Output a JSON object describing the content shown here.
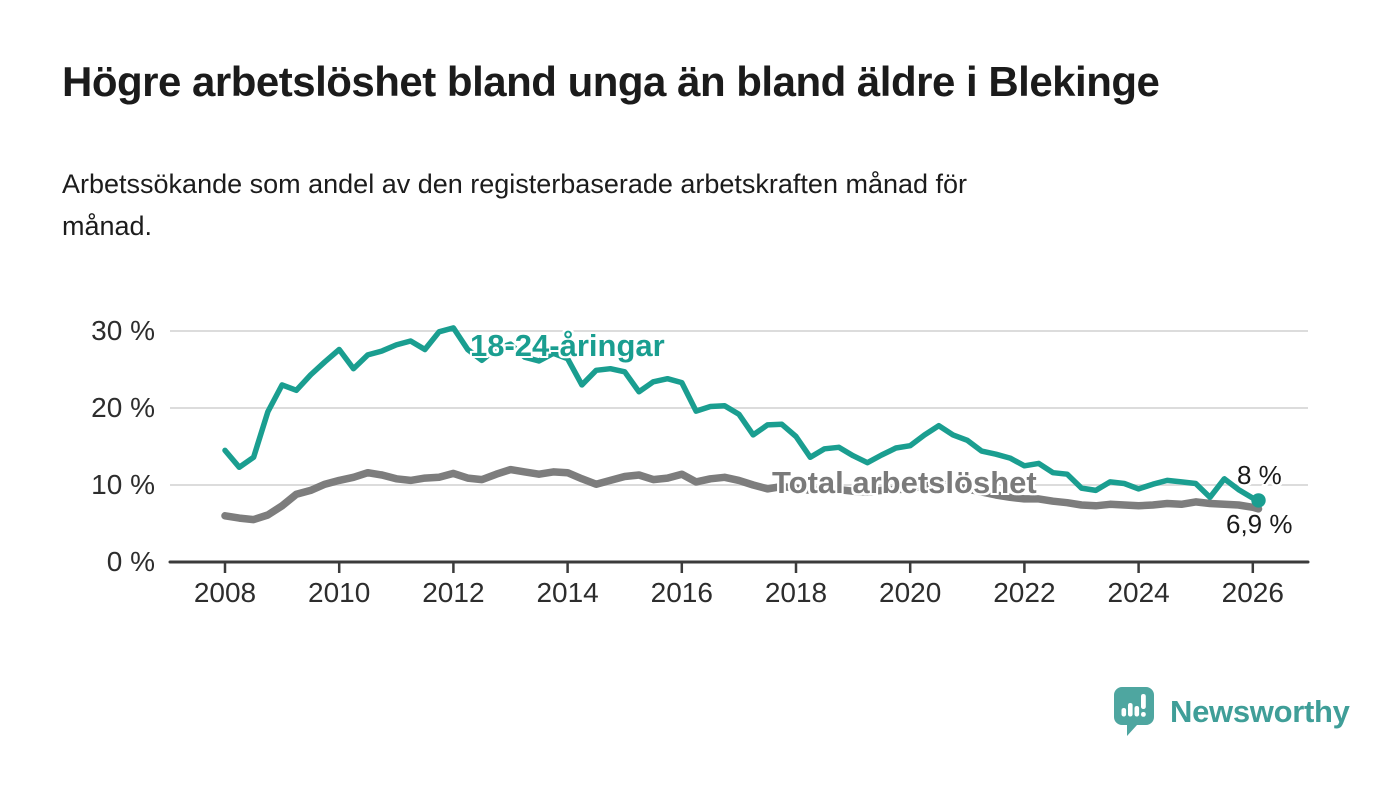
{
  "header": {
    "title": "Högre arbetslöshet bland unga än bland äldre i Blekinge",
    "subtitle_lines": [
      "Arbetssökande som andel av den registerbaserade arbetskraften månad för",
      "månad."
    ]
  },
  "chart_data": {
    "type": "line",
    "title": "Högre arbetslöshet bland unga än bland äldre i Blekinge",
    "subtitle": "Arbetssökande som andel av den registerbaserade arbetskraften månad för månad.",
    "unit": "%",
    "xlim": [
      2007,
      2027.3
    ],
    "ylim": [
      0,
      32
    ],
    "grid": "horizontal",
    "legend_position": "inline-labels",
    "x": [
      2008,
      2008.25,
      2008.5,
      2008.75,
      2009,
      2009.25,
      2009.5,
      2009.75,
      2010,
      2010.25,
      2010.5,
      2010.75,
      2011,
      2011.25,
      2011.5,
      2011.75,
      2012,
      2012.25,
      2012.5,
      2012.75,
      2013,
      2013.25,
      2013.5,
      2013.75,
      2014,
      2014.25,
      2014.5,
      2014.75,
      2015,
      2015.25,
      2015.5,
      2015.75,
      2016,
      2016.25,
      2016.5,
      2016.75,
      2017,
      2017.25,
      2017.5,
      2017.75,
      2018,
      2018.25,
      2018.5,
      2018.75,
      2019,
      2019.25,
      2019.5,
      2019.75,
      2020,
      2020.25,
      2020.5,
      2020.75,
      2021,
      2021.25,
      2021.5,
      2021.75,
      2022,
      2022.25,
      2022.5,
      2022.75,
      2023,
      2023.25,
      2023.5,
      2023.75,
      2024,
      2024.25,
      2024.5,
      2024.75,
      2025,
      2025.25,
      2025.5,
      2025.75,
      2026,
      2026.1
    ],
    "series": [
      {
        "name": "18-24-åringar",
        "color": "#1a9e90",
        "values": [
          14.5,
          12.3,
          13.6,
          19.5,
          23,
          22.3,
          24.3,
          26,
          27.6,
          25.1,
          26.9,
          27.4,
          28.2,
          28.7,
          27.6,
          29.9,
          30.4,
          27.6,
          26.2,
          27.7,
          28.3,
          26.6,
          26.1,
          27.1,
          26.4,
          23,
          24.9,
          25.1,
          24.7,
          22.1,
          23.4,
          23.8,
          23.3,
          19.6,
          20.2,
          20.3,
          19.2,
          16.5,
          17.8,
          17.9,
          16.3,
          13.6,
          14.7,
          14.9,
          13.8,
          12.9,
          13.9,
          14.8,
          15.1,
          16.5,
          17.7,
          16.5,
          15.8,
          14.4,
          14,
          13.5,
          12.5,
          12.8,
          11.6,
          11.4,
          9.6,
          9.3,
          10.4,
          10.2,
          9.5,
          10.1,
          10.6,
          10.4,
          10.2,
          8.4,
          10.8,
          9.4,
          8.3,
          8
        ]
      },
      {
        "name": "Total arbetslöshet",
        "color": "#7d7d7d",
        "values": [
          6,
          5.7,
          5.5,
          6.1,
          7.3,
          8.8,
          9.3,
          10.1,
          10.6,
          11,
          11.6,
          11.3,
          10.8,
          10.6,
          10.9,
          11,
          11.5,
          10.9,
          10.7,
          11.4,
          12,
          11.7,
          11.4,
          11.7,
          11.6,
          10.8,
          10.1,
          10.6,
          11.1,
          11.3,
          10.7,
          10.9,
          11.4,
          10.4,
          10.8,
          11,
          10.6,
          10,
          9.5,
          9.8,
          9.6,
          9.3,
          9.5,
          9.4,
          9.2,
          9.1,
          9.3,
          9.4,
          9.5,
          9.9,
          10.3,
          9.9,
          9.5,
          9.1,
          8.7,
          8.4,
          8.2,
          8.2,
          7.9,
          7.7,
          7.4,
          7.3,
          7.5,
          7.4,
          7.3,
          7.4,
          7.6,
          7.5,
          7.8,
          7.6,
          7.5,
          7.4,
          7.1,
          6.9
        ]
      }
    ],
    "y_ticks": [
      {
        "value": 0,
        "label": "0 %"
      },
      {
        "value": 10,
        "label": "10 %"
      },
      {
        "value": 20,
        "label": "20 %"
      },
      {
        "value": 30,
        "label": "30 %"
      }
    ],
    "x_ticks": [
      {
        "value": 2008,
        "label": "2008"
      },
      {
        "value": 2010,
        "label": "2010"
      },
      {
        "value": 2012,
        "label": "2012"
      },
      {
        "value": 2014,
        "label": "2014"
      },
      {
        "value": 2016,
        "label": "2016"
      },
      {
        "value": 2018,
        "label": "2018"
      },
      {
        "value": 2020,
        "label": "2020"
      },
      {
        "value": 2022,
        "label": "2022"
      },
      {
        "value": 2024,
        "label": "2024"
      },
      {
        "value": 2026,
        "label": "2026"
      }
    ],
    "end_labels": {
      "young": "8 %",
      "total": "6,9 %"
    },
    "end_marker_series": "18-24-åringar"
  },
  "colors": {
    "accent_teal": "#1a9e90",
    "line_gray": "#7d7d7d",
    "grid": "#dcdcdc",
    "axis": "#3b3b3b",
    "tick_text": "#2d2d2d",
    "title_text": "#1b1b1b",
    "total_label_gray": "#7a7a7a",
    "logo_mark_teal": "#4ea6a0",
    "logo_text_teal": "#3f9e98"
  },
  "footer": {
    "brand": "Newsworthy"
  }
}
